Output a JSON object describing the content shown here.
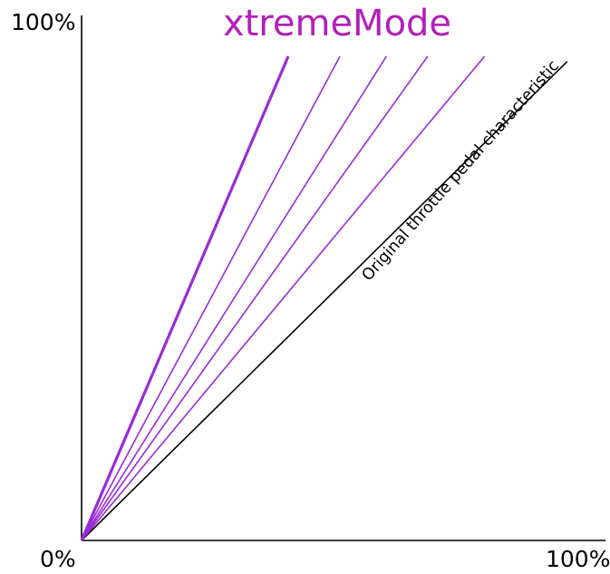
{
  "chart_data": {
    "type": "line",
    "title": "xtremeMode",
    "title_color": "#b21fb8",
    "x_tick_labels": [
      "0%",
      "100%"
    ],
    "y_tick_labels": [
      "0%",
      "100%"
    ],
    "xlim": [
      0,
      100
    ],
    "ylim": [
      0,
      100
    ],
    "grid": false,
    "legend": "none",
    "annotation": "Original throttle pedal characteristic",
    "series": [
      {
        "x": [
          0,
          94
        ],
        "y": [
          0,
          93
        ],
        "color": "#000000",
        "bold": false
      },
      {
        "x": [
          0,
          78
        ],
        "y": [
          0,
          94
        ],
        "color": "#9a2ad8",
        "bold": false
      },
      {
        "x": [
          0,
          67
        ],
        "y": [
          0,
          94
        ],
        "color": "#9a2ad8",
        "bold": false
      },
      {
        "x": [
          0,
          59
        ],
        "y": [
          0,
          94
        ],
        "color": "#9a2ad8",
        "bold": false
      },
      {
        "x": [
          0,
          50
        ],
        "y": [
          0,
          94
        ],
        "color": "#9a2ad8",
        "bold": false
      },
      {
        "x": [
          0,
          40
        ],
        "y": [
          0,
          94
        ],
        "color": "#9a2ad8",
        "bold": true
      }
    ]
  }
}
